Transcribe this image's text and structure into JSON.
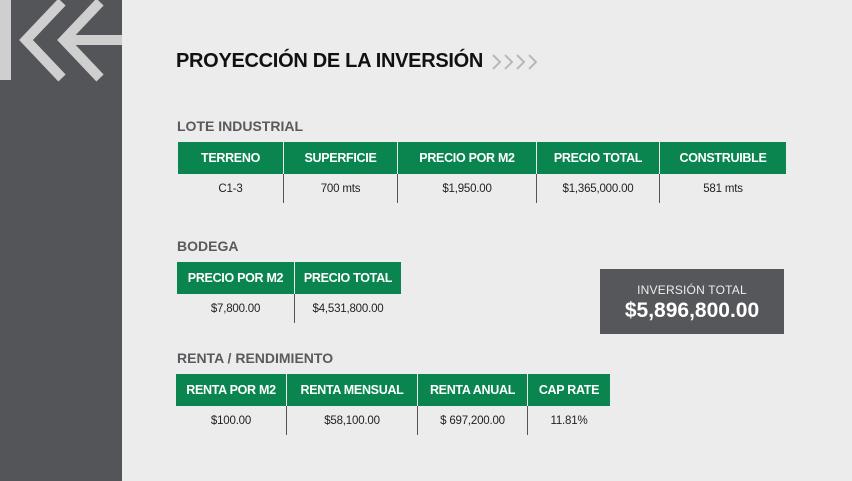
{
  "title": "PROYECCIÓN DE LA INVERSIÓN",
  "colors": {
    "accent": "#0a8550",
    "sidebar": "#545559",
    "background": "#ececec",
    "total_box": "#56575b"
  },
  "lote": {
    "label": "LOTE INDUSTRIAL",
    "headers": [
      "TERRENO",
      "SUPERFICIE",
      "PRECIO POR M2",
      "PRECIO TOTAL",
      "CONSTRUIBLE"
    ],
    "values": [
      "C1-3",
      "700 mts",
      "$1,950.00",
      "$1,365,000.00",
      "581 mts"
    ]
  },
  "bodega": {
    "label": "BODEGA",
    "headers": [
      "PRECIO POR M2",
      "PRECIO TOTAL"
    ],
    "values": [
      "$7,800.00",
      "$4,531,800.00"
    ]
  },
  "renta": {
    "label": "RENTA / RENDIMIENTO",
    "headers": [
      "RENTA POR M2",
      "RENTA MENSUAL",
      "RENTA ANUAL",
      "CAP RATE"
    ],
    "values": [
      "$100.00",
      "$58,100.00",
      "$ 697,200.00",
      "11.81%"
    ]
  },
  "total": {
    "label": "INVERSIÓN TOTAL",
    "value": "$5,896,800.00"
  }
}
